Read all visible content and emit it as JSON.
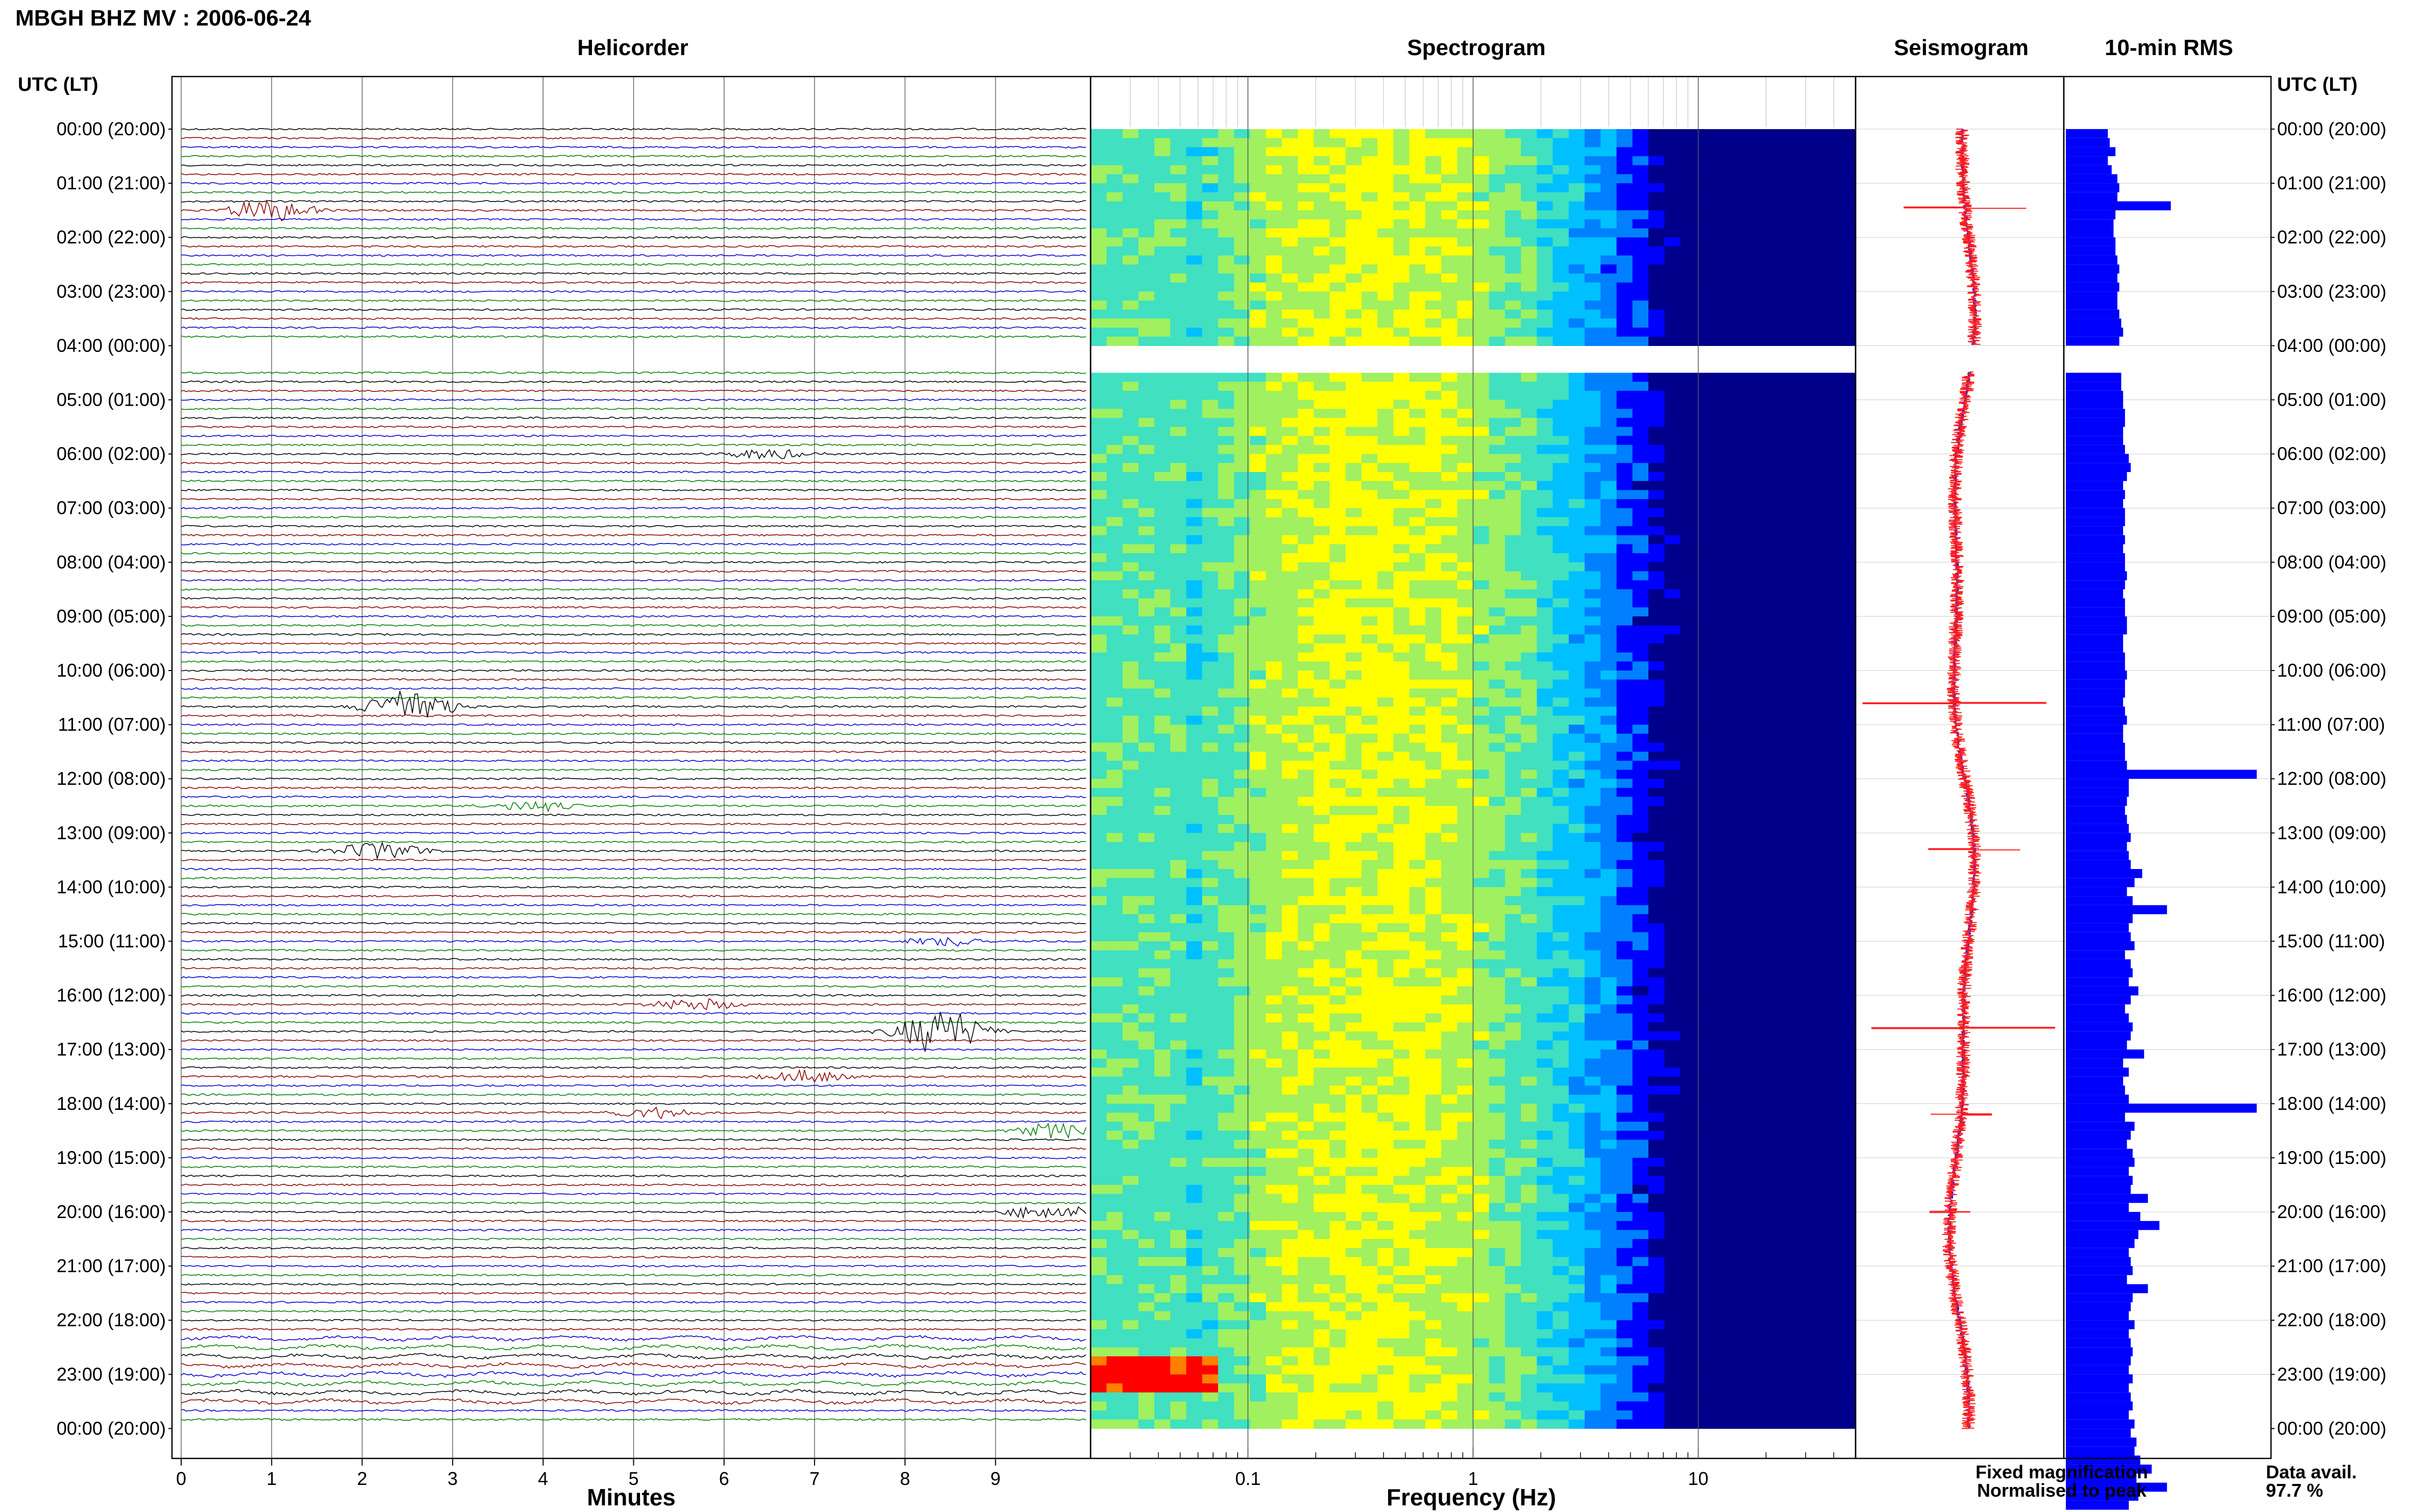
{
  "header": {
    "station_title": "MBGH BHZ MV : 2006-06-24"
  },
  "panels": {
    "helicorder": "Helicorder",
    "spectrogram": "Spectrogram",
    "seismogram": "Seismogram",
    "rms": "10-min RMS"
  },
  "axes": {
    "utc_lt_left": "UTC (LT)",
    "utc_lt_right": "UTC (LT)",
    "minutes_label": "Minutes",
    "frequency_label": "Frequency (Hz)"
  },
  "legend": {
    "fixed": "Fixed magnification",
    "normalised": "Normalised to peak",
    "fixed_color": "#1a1aff",
    "normalised_color": "#ff1a1a"
  },
  "availability": {
    "label": "Data avail.",
    "value": "97.7 %"
  },
  "chart_data": [
    {
      "type": "line",
      "panel": "helicorder",
      "xlabel": "Minutes",
      "xlim": [
        0,
        10
      ],
      "x_ticks": [
        "0",
        "1",
        "2",
        "3",
        "4",
        "5",
        "6",
        "7",
        "8",
        "9"
      ],
      "ylabel": "UTC (LT)",
      "y_ticks": [
        "00:00 (20:00)",
        "01:00 (21:00)",
        "02:00 (22:00)",
        "03:00 (23:00)",
        "04:00 (00:00)",
        "05:00 (01:00)",
        "06:00 (02:00)",
        "07:00 (03:00)",
        "08:00 (04:00)",
        "09:00 (05:00)",
        "10:00 (06:00)",
        "11:00 (07:00)",
        "12:00 (08:00)",
        "13:00 (09:00)",
        "14:00 (10:00)",
        "15:00 (11:00)",
        "16:00 (12:00)",
        "17:00 (13:00)",
        "18:00 (14:00)",
        "19:00 (15:00)",
        "20:00 (16:00)",
        "21:00 (17:00)",
        "22:00 (18:00)",
        "23:00 (19:00)",
        "00:00 (20:00)"
      ],
      "trace_colors": [
        "#000000",
        "#8b0000",
        "#0000cd",
        "#008000"
      ],
      "gap_utc_hours": [
        4.0,
        4.5
      ],
      "events": [
        {
          "utc_hour": 1.45,
          "minute": 1.0,
          "color": "#8b0000",
          "amplitude": 1.3
        },
        {
          "utc_hour": 5.95,
          "minute": 6.5,
          "color": "#008000",
          "amplitude": 0.6
        },
        {
          "utc_hour": 10.6,
          "minute": 2.5,
          "color": "#000000",
          "amplitude": 2.2
        },
        {
          "utc_hour": 12.45,
          "minute": 3.9,
          "color": "#008000",
          "amplitude": 0.6
        },
        {
          "utc_hour": 13.3,
          "minute": 2.2,
          "color": "#000000",
          "amplitude": 1.1
        },
        {
          "utc_hour": 15.0,
          "minute": 8.5,
          "color": "#8b0000",
          "amplitude": 0.6
        },
        {
          "utc_hour": 16.1,
          "minute": 5.7,
          "color": "#8b0000",
          "amplitude": 0.7
        },
        {
          "utc_hour": 16.6,
          "minute": 8.4,
          "color": "#000000",
          "amplitude": 2.6
        },
        {
          "utc_hour": 17.5,
          "minute": 6.9,
          "color": "#8b0000",
          "amplitude": 0.7
        },
        {
          "utc_hour": 18.15,
          "minute": 5.2,
          "color": "#8b0000",
          "amplitude": 0.7
        },
        {
          "utc_hour": 18.5,
          "minute": 9.7,
          "color": "#008000",
          "amplitude": 0.9
        },
        {
          "utc_hour": 20.0,
          "minute": 9.6,
          "color": "#000000",
          "amplitude": 0.9
        }
      ]
    },
    {
      "type": "heatmap",
      "panel": "spectrogram",
      "xlabel": "Frequency (Hz)",
      "xscale": "log",
      "xlim": [
        0.02,
        50
      ],
      "x_ticks": [
        "0.1",
        "1",
        "10"
      ],
      "gap_utc_hours": [
        4.0,
        4.5
      ],
      "colormap": [
        "#00008b",
        "#0000ff",
        "#0080ff",
        "#00c0ff",
        "#40e0c0",
        "#a0f060",
        "#ffff00",
        "#ff8000",
        "#ff0000"
      ]
    },
    {
      "type": "line",
      "panel": "seismogram",
      "series": [
        {
          "name": "Fixed magnification",
          "color": "#1a1aff"
        },
        {
          "name": "Normalised to peak",
          "color": "#ff1a1a"
        }
      ],
      "gap_utc_hours": [
        4.0,
        4.5
      ]
    },
    {
      "type": "bar",
      "panel": "rms",
      "title": "10-min RMS",
      "orientation": "horizontal",
      "bin_minutes": 10,
      "start_utc_hour": 0,
      "xlim": [
        0,
        1
      ],
      "values": [
        0.22,
        0.23,
        0.26,
        0.22,
        0.24,
        0.27,
        0.28,
        0.27,
        0.55,
        0.26,
        0.25,
        0.25,
        0.26,
        0.26,
        0.27,
        0.28,
        0.27,
        0.28,
        0.27,
        0.27,
        0.28,
        0.29,
        0.3,
        0.28,
        null,
        null,
        null,
        0.29,
        0.29,
        0.3,
        0.3,
        0.31,
        0.31,
        0.3,
        0.3,
        0.31,
        0.33,
        0.34,
        0.32,
        0.3,
        0.31,
        0.3,
        0.31,
        0.31,
        0.3,
        0.31,
        0.3,
        0.31,
        0.31,
        0.32,
        0.31,
        0.3,
        0.31,
        0.31,
        0.32,
        0.32,
        0.3,
        0.3,
        0.31,
        0.31,
        0.32,
        0.31,
        0.31,
        0.3,
        0.31,
        0.32,
        0.3,
        0.3,
        0.31,
        0.31,
        0.32,
        1.0,
        0.33,
        0.33,
        0.32,
        0.31,
        0.32,
        0.33,
        0.34,
        0.32,
        0.33,
        0.34,
        0.4,
        0.36,
        0.32,
        0.35,
        0.53,
        0.35,
        0.33,
        0.34,
        0.36,
        0.31,
        0.34,
        0.35,
        0.33,
        0.38,
        0.34,
        0.31,
        0.33,
        0.35,
        0.34,
        0.32,
        0.41,
        0.3,
        0.33,
        0.3,
        0.31,
        0.33,
        1.0,
        0.31,
        0.36,
        0.34,
        0.32,
        0.35,
        0.36,
        0.33,
        0.35,
        0.34,
        0.43,
        0.33,
        0.39,
        0.49,
        0.38,
        0.36,
        0.33,
        0.34,
        0.35,
        0.32,
        0.43,
        0.35,
        0.34,
        0.33,
        0.36,
        0.33,
        0.34,
        0.35,
        0.34,
        0.33,
        0.35,
        0.33,
        0.34,
        0.35,
        0.33,
        0.36,
        0.34,
        0.37,
        0.36,
        0.39,
        0.45,
        0.37,
        0.53,
        0.38,
        0.33
      ]
    }
  ]
}
